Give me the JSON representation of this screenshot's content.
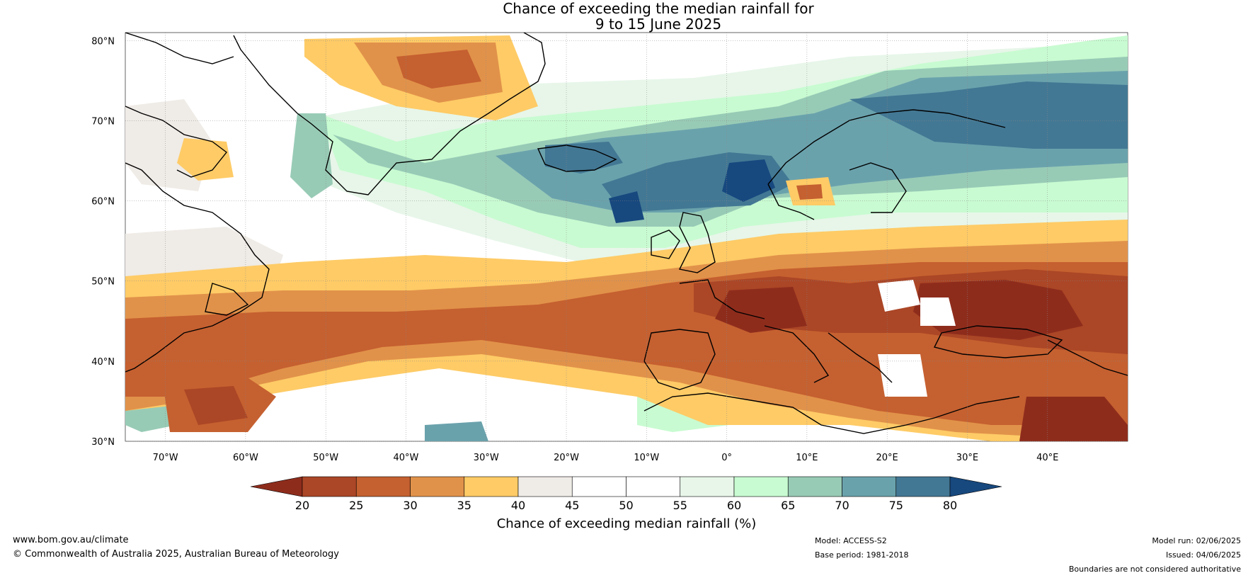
{
  "title_line1": "Chance of exceeding the median rainfall for",
  "title_line2": "9 to 15 June 2025",
  "map": {
    "lat_labels": [
      "80°N",
      "70°N",
      "60°N",
      "50°N",
      "40°N",
      "30°N"
    ],
    "lon_labels": [
      "70°W",
      "60°W",
      "50°W",
      "40°W",
      "30°W",
      "20°W",
      "10°W",
      "0°",
      "10°E",
      "20°E",
      "30°E",
      "40°E"
    ],
    "lat_range": [
      30,
      81
    ],
    "lon_range": [
      -75,
      50
    ]
  },
  "colorbar": {
    "label": "Chance of exceeding median rainfall (%)",
    "ticks": [
      "20",
      "25",
      "30",
      "35",
      "40",
      "45",
      "50",
      "55",
      "60",
      "65",
      "70",
      "75",
      "80"
    ],
    "colors": [
      "#8e2c1c",
      "#ab4626",
      "#c56030",
      "#e1924a",
      "#fecb66",
      "#efebe6",
      "#ffffff",
      "#ffffff",
      "#e7f6e9",
      "#c8fbd1",
      "#98cbb6",
      "#6aa2ac",
      "#437894",
      "#17487e"
    ]
  },
  "footer": {
    "website": "www.bom.gov.au/climate",
    "copyright": "© Commonwealth of Australia 2025, Australian Bureau of Meteorology",
    "model": "Model: ACCESS-S2",
    "base_period": "Base period: 1981-2018",
    "model_run": "Model run: 02/06/2025",
    "issued": "Issued: 04/06/2025",
    "boundaries": "Boundaries are not considered authoritative"
  }
}
